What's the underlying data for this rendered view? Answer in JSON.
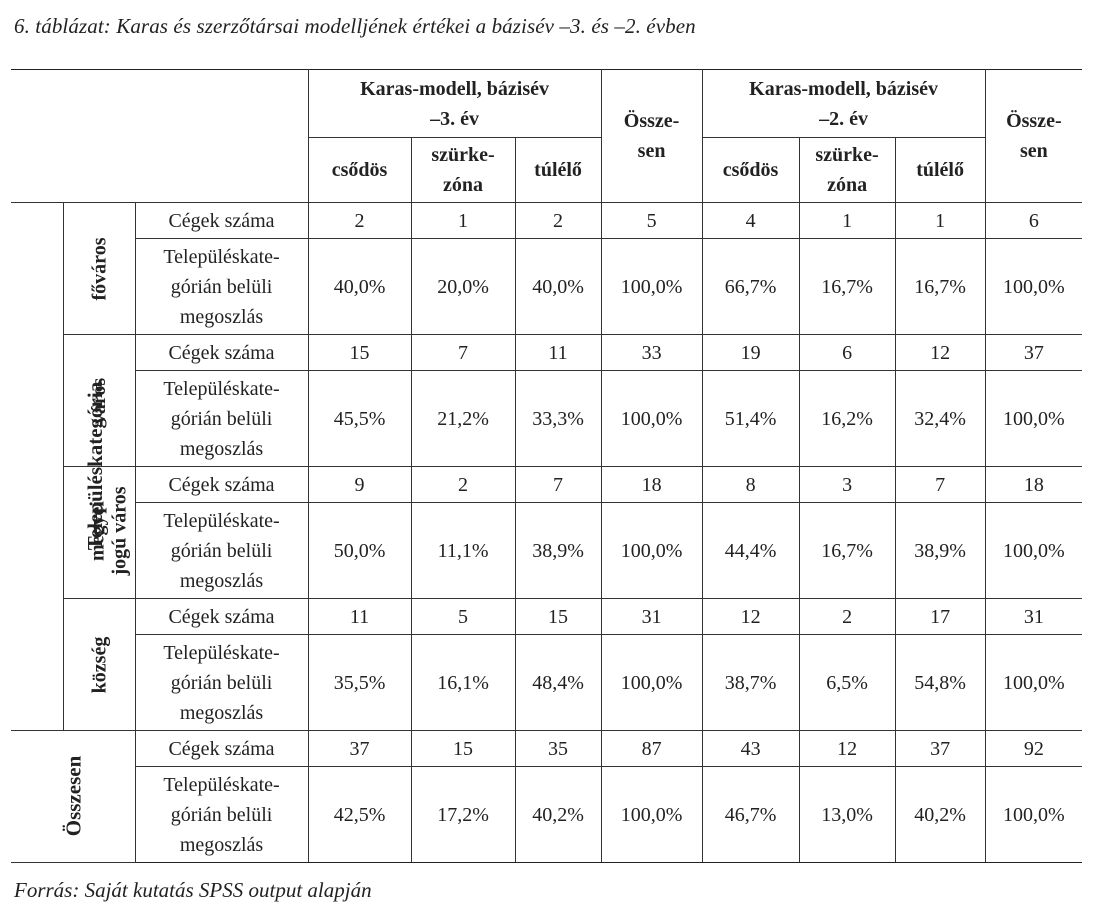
{
  "caption": "6. táblázat: Karas és szerzőtársai modelljének értékei a bázisév –3. és –2. évben",
  "source": "Forrás: Saját kutatás SPSS output alapján",
  "header": {
    "group1": [
      "Karas-modell, bázisév",
      "–3. év"
    ],
    "group2": [
      "Karas-modell, bázisév",
      "–2. év"
    ],
    "total": [
      "Össze-",
      "sen"
    ],
    "sub": {
      "csodos": "csődös",
      "szurke": [
        "szürke-",
        "zóna"
      ],
      "tulelo": "túlélő"
    }
  },
  "outer_label": "Településkategória",
  "row_labels": {
    "count": "Cégek száma",
    "share": [
      "Településkate-",
      "górián belüli",
      "megoszlás"
    ]
  },
  "categories": [
    {
      "name": [
        "főváros"
      ],
      "count": [
        "2",
        "1",
        "2",
        "5",
        "4",
        "1",
        "1",
        "6"
      ],
      "share": [
        "40,0%",
        "20,0%",
        "40,0%",
        "100,0%",
        "66,7%",
        "16,7%",
        "16,7%",
        "100,0%"
      ]
    },
    {
      "name": [
        "város"
      ],
      "count": [
        "15",
        "7",
        "11",
        "33",
        "19",
        "6",
        "12",
        "37"
      ],
      "share": [
        "45,5%",
        "21,2%",
        "33,3%",
        "100,0%",
        "51,4%",
        "16,2%",
        "32,4%",
        "100,0%"
      ]
    },
    {
      "name": [
        "megyei",
        "jogú város"
      ],
      "count": [
        "9",
        "2",
        "7",
        "18",
        "8",
        "3",
        "7",
        "18"
      ],
      "share": [
        "50,0%",
        "11,1%",
        "38,9%",
        "100,0%",
        "44,4%",
        "16,7%",
        "38,9%",
        "100,0%"
      ]
    },
    {
      "name": [
        "község"
      ],
      "count": [
        "11",
        "5",
        "15",
        "31",
        "12",
        "2",
        "17",
        "31"
      ],
      "share": [
        "35,5%",
        "16,1%",
        "48,4%",
        "100,0%",
        "38,7%",
        "6,5%",
        "54,8%",
        "100,0%"
      ]
    }
  ],
  "total_block": {
    "name": "Összesen",
    "count": [
      "37",
      "15",
      "35",
      "87",
      "43",
      "12",
      "37",
      "92"
    ],
    "share": [
      "42,5%",
      "17,2%",
      "40,2%",
      "100,0%",
      "46,7%",
      "13,0%",
      "40,2%",
      "100,0%"
    ]
  }
}
